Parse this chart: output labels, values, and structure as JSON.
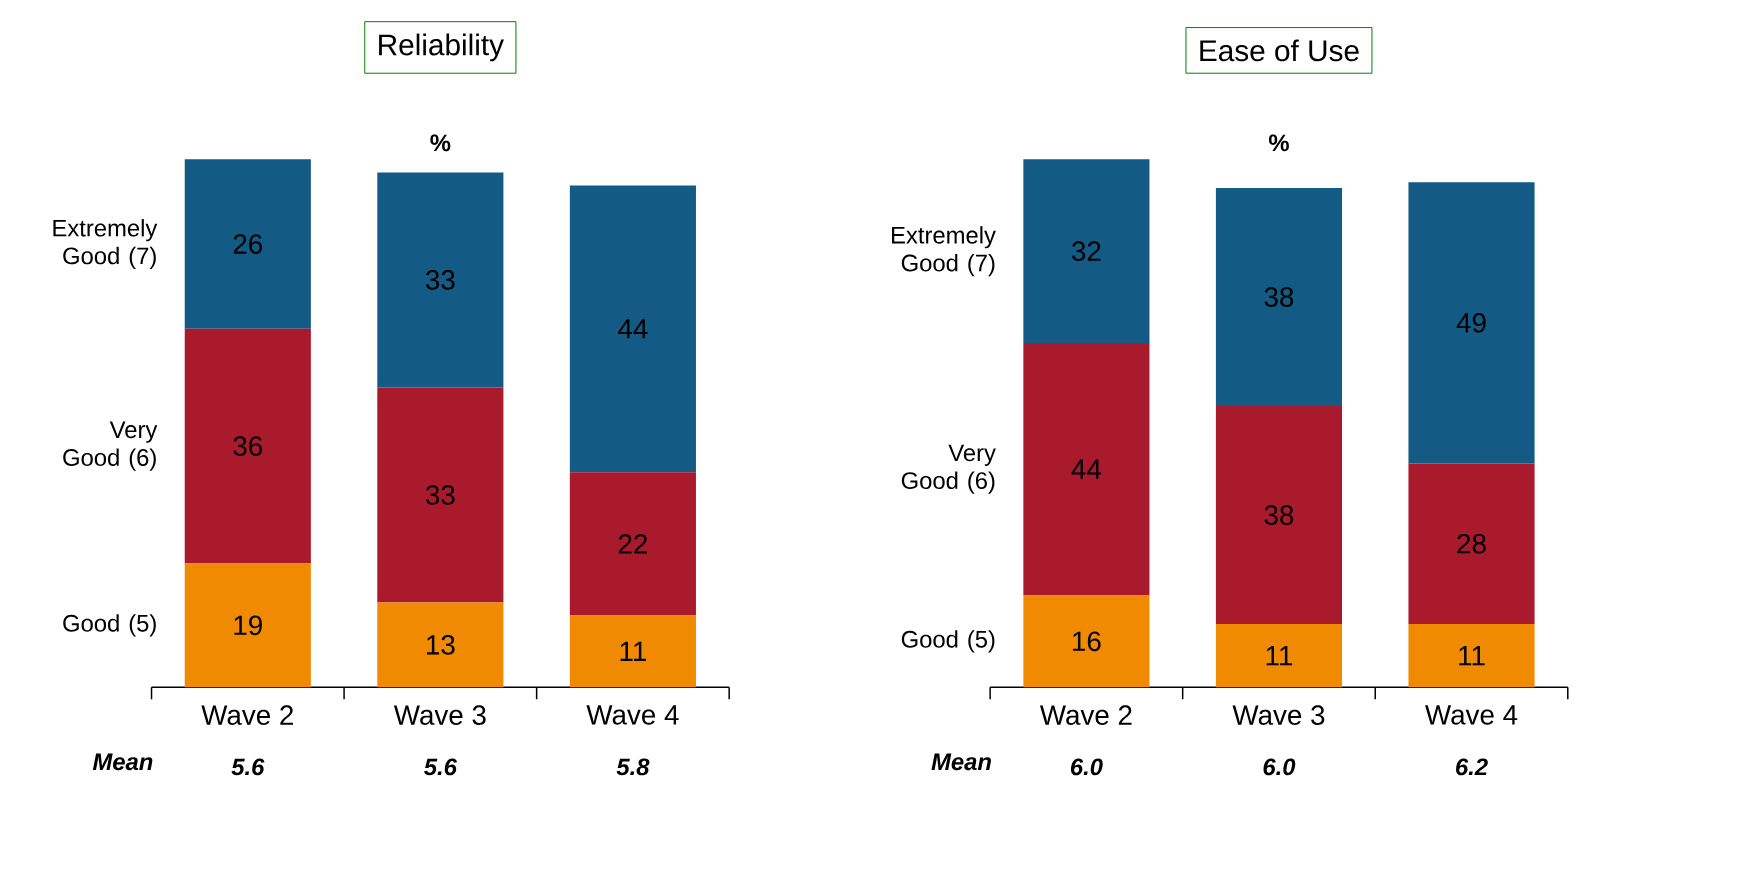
{
  "chart_data": [
    {
      "type": "bar",
      "title": "Reliability",
      "stacked": true,
      "data_labels": true,
      "categories": [
        "Wave 2",
        "Wave 3",
        "Wave 4"
      ],
      "series": [
        {
          "name": "Good (5)",
          "color": "#f08a00",
          "values": [
            19,
            13,
            11
          ]
        },
        {
          "name": "Very Good (6)",
          "color": "#a81a2c",
          "values": [
            36,
            33,
            22
          ]
        },
        {
          "name": "Extremely Good (7)",
          "color": "#135a85",
          "values": [
            26,
            33,
            44
          ]
        }
      ],
      "annotations": [
        "%",
        "Mean",
        "5.6",
        "5.6",
        "5.8"
      ]
    },
    {
      "type": "bar",
      "title": "Ease of Use",
      "stacked": true,
      "data_labels": true,
      "categories": [
        "Wave 2",
        "Wave 3",
        "Wave 4"
      ],
      "series": [
        {
          "name": "Good (5)",
          "color": "#f08a00",
          "values": [
            16,
            11,
            11
          ]
        },
        {
          "name": "Very Good (6)",
          "color": "#a81a2c",
          "values": [
            44,
            38,
            28
          ]
        },
        {
          "name": "Extremely Good (7)",
          "color": "#135a85",
          "values": [
            32,
            38,
            49
          ]
        }
      ],
      "annotations": [
        "%",
        "Mean",
        "6.0",
        "6.0",
        "6.2"
      ]
    }
  ]
}
